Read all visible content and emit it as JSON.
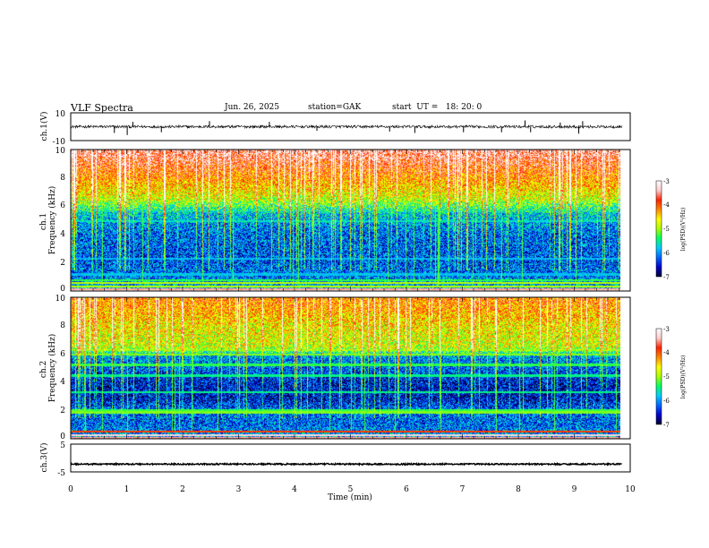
{
  "header": {
    "title": "VLF Spectra",
    "date": "Jun. 26, 2025",
    "station": "station=GAK",
    "start": "start  UT =   18: 20: 0"
  },
  "colors": {
    "spectrogram_bg": "#000033",
    "trace": "#000000",
    "colormap": [
      "#000033",
      "#0000cc",
      "#0066ff",
      "#00ccff",
      "#00ff66",
      "#aaff00",
      "#ffff00",
      "#ff8800",
      "#ff2200",
      "#ffcccc",
      "#ffffff"
    ]
  },
  "chart_data": {
    "type": "heatmap",
    "xlabel": "Time  (min)",
    "xlim": [
      0,
      10
    ],
    "x_ticks": [
      "0",
      "1",
      "2",
      "3",
      "4",
      "5",
      "6",
      "7",
      "8",
      "9",
      "10"
    ],
    "data_end_min": 9.85,
    "panels": [
      {
        "id": "ch1_voltage",
        "type": "line",
        "ylabel": "ch.1(V)",
        "ylim": [
          -10,
          10
        ],
        "y_ticks": [
          "10",
          "-10"
        ],
        "baseline": 0,
        "noise_amplitude": 1.0,
        "spikes": [
          {
            "t": 0.78,
            "v": -4.5
          },
          {
            "t": 1.01,
            "v": -6.0
          },
          {
            "t": 1.11,
            "v": 3.5
          },
          {
            "t": 1.62,
            "v": -4.0
          },
          {
            "t": 2.48,
            "v": 4.0
          },
          {
            "t": 3.55,
            "v": 3.5
          },
          {
            "t": 4.4,
            "v": -3.0
          },
          {
            "t": 5.7,
            "v": -3.5
          },
          {
            "t": 6.15,
            "v": -4.5
          },
          {
            "t": 7.02,
            "v": -4.0
          },
          {
            "t": 7.7,
            "v": -4.0
          },
          {
            "t": 8.12,
            "v": 4.5
          },
          {
            "t": 8.22,
            "v": -4.0
          },
          {
            "t": 8.75,
            "v": 3.0
          },
          {
            "t": 9.08,
            "v": -5.0
          },
          {
            "t": 9.15,
            "v": 4.0
          }
        ]
      },
      {
        "id": "ch1_spectrogram",
        "type": "heatmap",
        "ylabel": "ch.1\nFrequency (kHz)",
        "ylim": [
          0,
          10
        ],
        "y_ticks": [
          "0",
          "2",
          "4",
          "6",
          "8",
          "10"
        ],
        "colorbar": {
          "label": "log(PSD)(V²/Hz)",
          "range": [
            -7,
            -3
          ],
          "ticks": [
            "-3",
            "-4",
            "-5",
            "-6",
            "-7"
          ]
        },
        "level_vs_freq_khz": [
          [
            0,
            0.3
          ],
          [
            1,
            0.22
          ],
          [
            2,
            0.18
          ],
          [
            4,
            0.2
          ],
          [
            5.5,
            0.3
          ],
          [
            6.5,
            0.55
          ],
          [
            8,
            0.7
          ],
          [
            9.5,
            0.85
          ],
          [
            10,
            0.88
          ]
        ],
        "lines_khz": [
          {
            "f": 0.15,
            "level": 0.9
          },
          {
            "f": 0.35,
            "level": 0.55
          },
          {
            "f": 0.6,
            "level": 0.55
          },
          {
            "f": 0.8,
            "level": 0.45
          },
          {
            "f": 1.2,
            "level": 0.3
          },
          {
            "f": 2.3,
            "level": 0.3
          },
          {
            "f": 4.95,
            "level": 0.35
          },
          {
            "f": 5.7,
            "level": 0.3
          }
        ],
        "white_gap_khz": [
          0,
          0.08
        ]
      },
      {
        "id": "ch2_spectrogram",
        "type": "heatmap",
        "ylabel": "ch.2\nFrequency (kHz)",
        "ylim": [
          0,
          10
        ],
        "y_ticks": [
          "0",
          "2",
          "4",
          "6",
          "8",
          "10"
        ],
        "colorbar": {
          "label": "log(PSD)(V²/Hz)",
          "range": [
            -7,
            -3
          ],
          "ticks": [
            "-3",
            "-4",
            "-5",
            "-6",
            "-7"
          ]
        },
        "level_vs_freq_khz": [
          [
            0,
            0.28
          ],
          [
            1,
            0.2
          ],
          [
            2,
            0.2
          ],
          [
            3,
            0.1
          ],
          [
            4,
            0.12
          ],
          [
            5,
            0.2
          ],
          [
            5.8,
            0.25
          ],
          [
            6.5,
            0.55
          ],
          [
            8,
            0.6
          ],
          [
            9.5,
            0.7
          ],
          [
            10,
            0.72
          ]
        ],
        "lines_khz": [
          {
            "f": 0.1,
            "level": 0.9
          },
          {
            "f": 0.3,
            "level": 0.95
          },
          {
            "f": 0.55,
            "level": 0.8
          },
          {
            "f": 1.9,
            "level": 0.5
          },
          {
            "f": 2.05,
            "level": 0.45
          },
          {
            "f": 3.3,
            "level": 0.4
          },
          {
            "f": 4.5,
            "level": 0.4
          },
          {
            "f": 5.25,
            "level": 0.45
          },
          {
            "f": 6.0,
            "level": 0.5
          },
          {
            "f": 6.3,
            "level": 0.5
          }
        ],
        "white_gap_khz": [
          0,
          0.05
        ]
      },
      {
        "id": "ch3_voltage",
        "type": "line",
        "ylabel": "ch.3(V)",
        "ylim": [
          -5,
          5
        ],
        "y_ticks": [
          "5",
          "-5"
        ],
        "baseline": -2.2,
        "noise_amplitude": 0.25
      }
    ]
  }
}
